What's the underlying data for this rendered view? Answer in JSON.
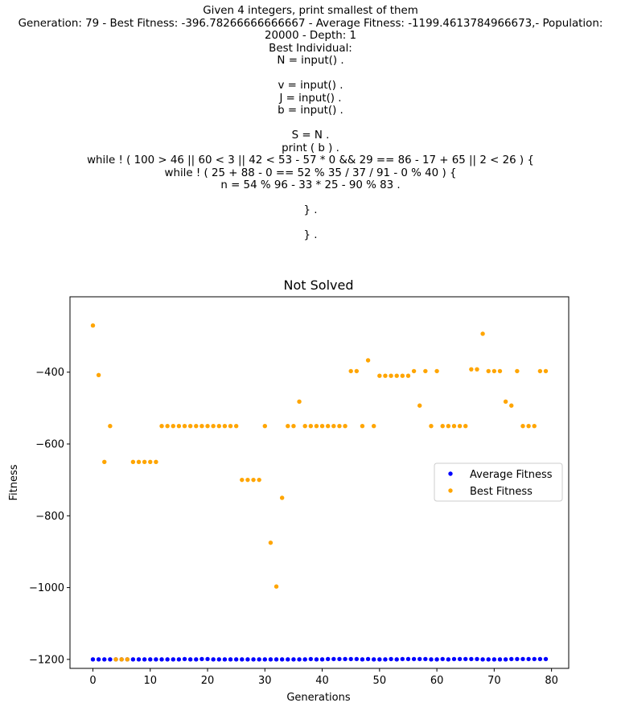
{
  "header": {
    "lines": [
      "Given 4 integers, print smallest of them",
      "Generation: 79 - Best Fitness: -396.78266666666667 - Average Fitness: -1199.4613784966673,- Population:",
      "20000 - Depth: 1",
      "Best Individual:",
      "N = input() .",
      "",
      "v = input() .",
      "J = input() .",
      "b = input() .",
      "",
      "S = N .",
      "print ( b ) .",
      "while ! ( 100 > 46 || 60 < 3 || 42 < 53 - 57 * 0 && 29 == 86 - 17 + 65 || 2 < 26 ) {",
      "while ! ( 25 + 88 - 0 == 52 % 35 / 37 / 91 - 0 % 40 ) {",
      "n = 54 % 96 - 33 * 25 - 90 % 83 .",
      "",
      "} .",
      "",
      "} ."
    ]
  },
  "chart_data": {
    "type": "scatter",
    "title": "Not Solved",
    "xlabel": "Generations",
    "ylabel": "Fitness",
    "xlim": [
      -4,
      83
    ],
    "ylim": [
      -1225,
      -190
    ],
    "xticks": [
      0,
      10,
      20,
      30,
      40,
      50,
      60,
      70,
      80
    ],
    "yticks": [
      -1200,
      -1000,
      -800,
      -600,
      -400
    ],
    "grid": false,
    "legend_position": "center-right",
    "series": [
      {
        "name": "Average Fitness",
        "color": "#0000ff",
        "x": [
          0,
          1,
          2,
          3,
          4,
          5,
          6,
          7,
          8,
          9,
          10,
          11,
          12,
          13,
          14,
          15,
          16,
          17,
          18,
          19,
          20,
          21,
          22,
          23,
          24,
          25,
          26,
          27,
          28,
          29,
          30,
          31,
          32,
          33,
          34,
          35,
          36,
          37,
          38,
          39,
          40,
          41,
          42,
          43,
          44,
          45,
          46,
          47,
          48,
          49,
          50,
          51,
          52,
          53,
          54,
          55,
          56,
          57,
          58,
          59,
          60,
          61,
          62,
          63,
          64,
          65,
          66,
          67,
          68,
          69,
          70,
          71,
          72,
          73,
          74,
          75,
          76,
          77,
          78,
          79
        ],
        "y": [
          -1200,
          -1200,
          -1200,
          -1200,
          -1200,
          -1200,
          -1200,
          -1200,
          -1200,
          -1200,
          -1200,
          -1200,
          -1200,
          -1200,
          -1200,
          -1200,
          -1199,
          -1200,
          -1200,
          -1199,
          -1199,
          -1200,
          -1200,
          -1200,
          -1200,
          -1200,
          -1200,
          -1200,
          -1200,
          -1200,
          -1200,
          -1200,
          -1200,
          -1200,
          -1200,
          -1200,
          -1200,
          -1200,
          -1199,
          -1200,
          -1200,
          -1199,
          -1199,
          -1199,
          -1199,
          -1199,
          -1199,
          -1200,
          -1199,
          -1200,
          -1200,
          -1200,
          -1199,
          -1200,
          -1199,
          -1199,
          -1199,
          -1199,
          -1199,
          -1200,
          -1200,
          -1199,
          -1200,
          -1199,
          -1199,
          -1199,
          -1199,
          -1199,
          -1200,
          -1200,
          -1200,
          -1200,
          -1200,
          -1199,
          -1199,
          -1199,
          -1199,
          -1199,
          -1199,
          -1199
        ]
      },
      {
        "name": "Best Fitness",
        "color": "#ffa500",
        "x": [
          0,
          1,
          2,
          3,
          4,
          5,
          6,
          7,
          8,
          9,
          10,
          11,
          12,
          13,
          14,
          15,
          16,
          17,
          18,
          19,
          20,
          21,
          22,
          23,
          24,
          25,
          26,
          27,
          28,
          29,
          30,
          31,
          32,
          33,
          34,
          35,
          36,
          37,
          38,
          39,
          40,
          41,
          42,
          43,
          44,
          45,
          46,
          47,
          48,
          49,
          50,
          51,
          52,
          53,
          54,
          55,
          56,
          57,
          58,
          59,
          60,
          61,
          62,
          63,
          64,
          65,
          66,
          67,
          68,
          69,
          70,
          71,
          72,
          73,
          74,
          75,
          76,
          77,
          78,
          79
        ],
        "y": [
          -270,
          -408,
          -650,
          -550,
          -1200,
          -1200,
          -1200,
          -650,
          -650,
          -650,
          -650,
          -650,
          -550,
          -550,
          -550,
          -550,
          -550,
          -550,
          -550,
          -550,
          -550,
          -550,
          -550,
          -550,
          -550,
          -550,
          -700,
          -700,
          -700,
          -700,
          -550,
          -875,
          -997,
          -750,
          -550,
          -550,
          -482,
          -550,
          -550,
          -550,
          -550,
          -550,
          -550,
          -550,
          -550,
          -397,
          -397,
          -550,
          -367,
          -550,
          -410,
          -410,
          -410,
          -410,
          -410,
          -410,
          -397,
          -493,
          -397,
          -550,
          -397,
          -550,
          -550,
          -550,
          -550,
          -550,
          -392,
          -392,
          -293,
          -397,
          -397,
          -397,
          -482,
          -493,
          -397,
          -550,
          -550,
          -550,
          -397,
          -397
        ]
      }
    ]
  }
}
